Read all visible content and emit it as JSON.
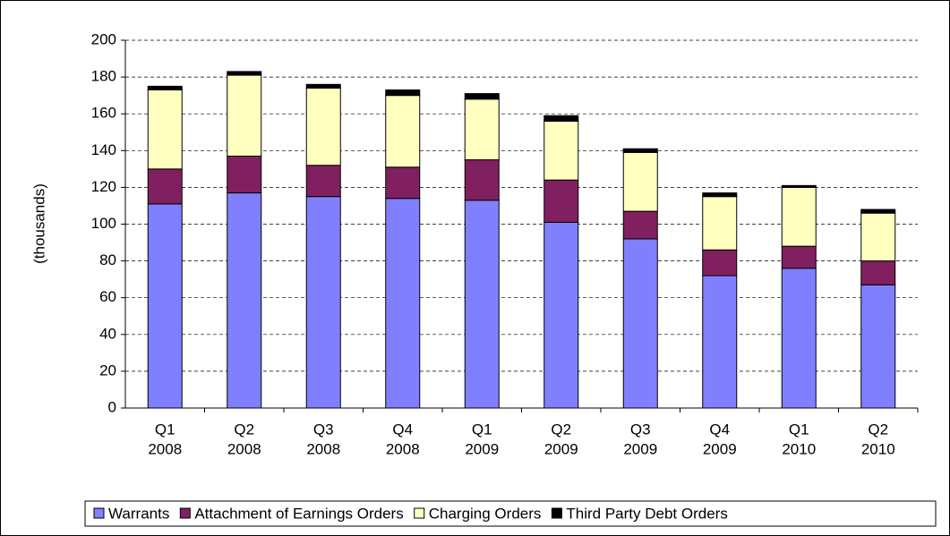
{
  "chart_data": {
    "type": "stacked-bar",
    "y_label": "(thousands)",
    "categories": [
      [
        "Q1",
        "2008"
      ],
      [
        "Q2",
        "2008"
      ],
      [
        "Q3",
        "2008"
      ],
      [
        "Q4",
        "2008"
      ],
      [
        "Q1",
        "2009"
      ],
      [
        "Q2",
        "2009"
      ],
      [
        "Q3",
        "2009"
      ],
      [
        "Q4",
        "2009"
      ],
      [
        "Q1",
        "2010"
      ],
      [
        "Q2",
        "2010"
      ]
    ],
    "series": [
      {
        "name": "Warrants",
        "color": "#8080ff",
        "values": [
          111,
          117,
          115,
          114,
          113,
          101,
          92,
          72,
          76,
          67
        ]
      },
      {
        "name": "Attachment of Earnings Orders",
        "color": "#802060",
        "values": [
          19,
          20,
          17,
          17,
          22,
          23,
          15,
          14,
          12,
          13
        ]
      },
      {
        "name": "Charging Orders",
        "color": "#ffffc0",
        "values": [
          43,
          44,
          42,
          39,
          33,
          32,
          32,
          29,
          32,
          26
        ]
      },
      {
        "name": "Third Party Debt Orders",
        "color": "#000000",
        "values": [
          2,
          2,
          2,
          3,
          3,
          3,
          2,
          2,
          1,
          2
        ]
      }
    ],
    "ylim": [
      0,
      200
    ],
    "yticks": [
      0,
      20,
      40,
      60,
      80,
      100,
      120,
      140,
      160,
      180,
      200
    ],
    "grid": true,
    "legend": "bottom"
  }
}
